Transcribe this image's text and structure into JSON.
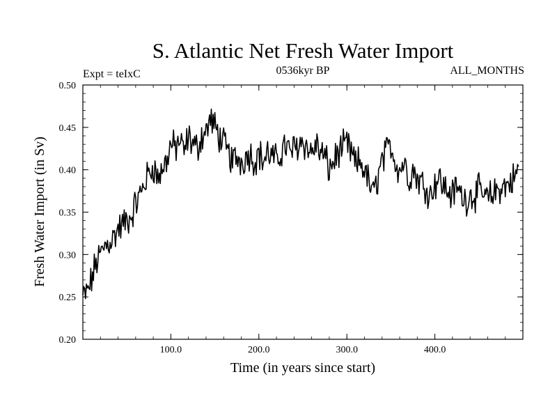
{
  "chart_data": {
    "type": "line",
    "title": "S. Atlantic Net Fresh Water Import",
    "subtitle_left": "Expt = teIxC",
    "subtitle_center": "0536kyr BP",
    "subtitle_right": "ALL_MONTHS",
    "xlabel": "Time (in years since start)",
    "ylabel": "Fresh Water Import (in Sv)",
    "xlim": [
      0,
      500
    ],
    "ylim": [
      0.2,
      0.5
    ],
    "xticks": [
      {
        "value": 100,
        "label": "100.0"
      },
      {
        "value": 200,
        "label": "200.0"
      },
      {
        "value": 300,
        "label": "300.0"
      },
      {
        "value": 400,
        "label": "400.0"
      }
    ],
    "yticks": [
      {
        "value": 0.2,
        "label": "0.20"
      },
      {
        "value": 0.25,
        "label": "0.25"
      },
      {
        "value": 0.3,
        "label": "0.30"
      },
      {
        "value": 0.35,
        "label": "0.35"
      },
      {
        "value": 0.4,
        "label": "0.40"
      },
      {
        "value": 0.45,
        "label": "0.45"
      },
      {
        "value": 0.5,
        "label": "0.50"
      }
    ],
    "grid": false,
    "series": [
      {
        "name": "Net Fresh Water Import",
        "color": "#000000",
        "x_start": 0,
        "x_step": 5,
        "values": [
          0.25,
          0.255,
          0.27,
          0.29,
          0.3,
          0.31,
          0.315,
          0.32,
          0.33,
          0.335,
          0.34,
          0.345,
          0.36,
          0.37,
          0.385,
          0.395,
          0.405,
          0.39,
          0.4,
          0.41,
          0.43,
          0.425,
          0.435,
          0.42,
          0.44,
          0.43,
          0.425,
          0.44,
          0.445,
          0.46,
          0.45,
          0.44,
          0.43,
          0.42,
          0.41,
          0.415,
          0.41,
          0.415,
          0.42,
          0.41,
          0.42,
          0.41,
          0.42,
          0.415,
          0.41,
          0.42,
          0.43,
          0.42,
          0.425,
          0.43,
          0.435,
          0.425,
          0.42,
          0.43,
          0.42,
          0.415,
          0.4,
          0.41,
          0.42,
          0.425,
          0.43,
          0.42,
          0.405,
          0.41,
          0.4,
          0.385,
          0.37,
          0.39,
          0.41,
          0.42,
          0.43,
          0.41,
          0.4,
          0.41,
          0.39,
          0.4,
          0.39,
          0.385,
          0.38,
          0.37,
          0.385,
          0.39,
          0.38,
          0.375,
          0.37,
          0.38,
          0.37,
          0.365,
          0.37,
          0.37,
          0.375,
          0.37,
          0.365,
          0.37,
          0.375,
          0.38,
          0.38,
          0.385,
          0.39,
          0.4
        ]
      }
    ]
  }
}
